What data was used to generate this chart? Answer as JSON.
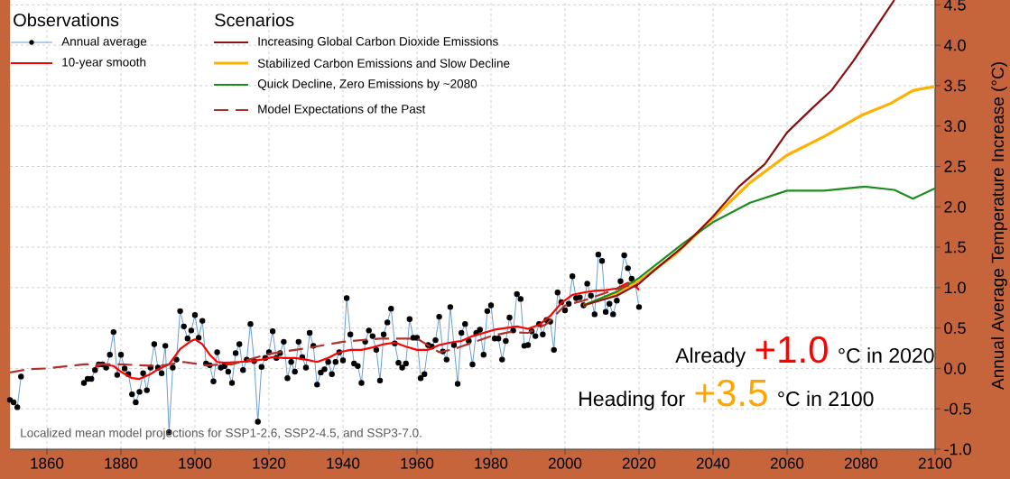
{
  "chart_data": {
    "type": "line",
    "ylabel": "Annual Average Temperature Increase (°C)",
    "xlim": [
      1850,
      2100
    ],
    "ylim": [
      -1.0,
      4.56
    ],
    "xticks": [
      1860,
      1880,
      1900,
      1920,
      1940,
      1960,
      1980,
      2000,
      2020,
      2040,
      2060,
      2080,
      2100
    ],
    "yticks": [
      {
        "value": -1,
        "label": "-1.0"
      },
      -0.5,
      {
        "value": 0,
        "label": "0.0"
      },
      0.5,
      {
        "value": 1,
        "label": "1.0"
      },
      1.5,
      {
        "value": 2,
        "label": "2.0"
      },
      2.5,
      {
        "value": 3,
        "label": "3.0"
      },
      3.5,
      {
        "value": 4,
        "label": "4.0"
      },
      4.5
    ],
    "grid": true,
    "legend": "top left",
    "annotations": [
      "Observations",
      "Scenarios",
      "Localized mean model projections for SSP1-2.6, SSP2-4.5, and SSP3-7.0.",
      "Already",
      "+1.0",
      "°C in 2020",
      "Heading for",
      "+3.5",
      "°C in 2100"
    ],
    "series": [
      {
        "name": "Annual average",
        "color": "#6b9ed2",
        "marker": "circle",
        "x": [
          1850,
          1851,
          1852,
          1853,
          1869,
          1870,
          1871,
          1872,
          1873,
          1874,
          1875,
          1876,
          1877,
          1878,
          1879,
          1880,
          1881,
          1882,
          1883,
          1884,
          1885,
          1886,
          1887,
          1888,
          1889,
          1890,
          1891,
          1892,
          1893,
          1894,
          1895,
          1896,
          1897,
          1898,
          1899,
          1900,
          1901,
          1902,
          1903,
          1904,
          1905,
          1906,
          1907,
          1908,
          1909,
          1910,
          1911,
          1912,
          1913,
          1914,
          1915,
          1916,
          1917,
          1918,
          1919,
          1920,
          1921,
          1922,
          1923,
          1924,
          1925,
          1926,
          1927,
          1928,
          1929,
          1930,
          1931,
          1932,
          1933,
          1934,
          1935,
          1936,
          1937,
          1938,
          1939,
          1940,
          1941,
          1942,
          1943,
          1944,
          1945,
          1946,
          1947,
          1948,
          1949,
          1950,
          1951,
          1952,
          1953,
          1954,
          1955,
          1956,
          1957,
          1958,
          1959,
          1960,
          1961,
          1962,
          1963,
          1964,
          1965,
          1966,
          1967,
          1968,
          1969,
          1970,
          1971,
          1972,
          1973,
          1974,
          1975,
          1976,
          1977,
          1978,
          1979,
          1980,
          1981,
          1982,
          1983,
          1984,
          1985,
          1986,
          1987,
          1988,
          1989,
          1990,
          1991,
          1992,
          1993,
          1994,
          1995,
          1996,
          1997,
          1998,
          1999,
          2000,
          2001,
          2002,
          2003,
          2004,
          2005,
          2006,
          2007,
          2008,
          2009,
          2010,
          2011,
          2012,
          2013,
          2014,
          2015,
          2016,
          2017,
          2018,
          2019,
          2020
        ],
        "values": [
          -0.39,
          -0.42,
          -0.48,
          -0.1,
          null,
          -0.18,
          -0.13,
          -0.13,
          -0.02,
          0.05,
          0.05,
          0.01,
          0.17,
          0.45,
          -0.08,
          0.17,
          0.0,
          -0.07,
          -0.32,
          -0.42,
          -0.29,
          -0.06,
          -0.27,
          0.01,
          0.3,
          0.01,
          -0.06,
          0.28,
          -0.79,
          0.01,
          0.11,
          0.71,
          0.52,
          0.37,
          0.47,
          0.66,
          0.38,
          0.59,
          0.06,
          0.04,
          -0.16,
          0.2,
          0.01,
          0.03,
          -0.04,
          -0.18,
          0.19,
          0.3,
          -0.02,
          0.11,
          0.55,
          0.09,
          -0.66,
          0.02,
          0.13,
          0.2,
          0.46,
          0.13,
          0.19,
          0.33,
          -0.12,
          0.08,
          -0.04,
          0.33,
          0.14,
          0.01,
          0.44,
          0.28,
          -0.2,
          -0.05,
          -0.01,
          0.08,
          -0.07,
          0.08,
          0.2,
          0.1,
          0.87,
          0.42,
          0.06,
          0.03,
          -0.18,
          0.33,
          0.47,
          0.4,
          0.23,
          -0.15,
          0.42,
          0.57,
          0.74,
          0.31,
          0.07,
          0.01,
          0.06,
          0.61,
          0.38,
          0.38,
          -0.12,
          -0.07,
          0.29,
          0.27,
          0.35,
          0.64,
          0.21,
          0.11,
          0.76,
          0.29,
          -0.19,
          0.44,
          0.55,
          0.34,
          0.05,
          0.44,
          0.48,
          0.17,
          0.71,
          0.78,
          0.37,
          0.37,
          0.11,
          0.34,
          0.63,
          0.47,
          0.92,
          0.86,
          0.28,
          0.29,
          0.46,
          0.4,
          0.55,
          0.42,
          0.6,
          0.58,
          0.23,
          0.94,
          0.82,
          0.72,
          0.8,
          1.14,
          0.87,
          0.88,
          0.78,
          1.05,
          0.9,
          0.67,
          1.41,
          1.33,
          0.7,
          0.8,
          0.67,
          0.84,
          1.08,
          1.4,
          1.24,
          1.11,
          1.04,
          0.76
        ]
      },
      {
        "name": "10-year smooth",
        "color": "#ff0000",
        "x": [
          1873,
          1875,
          1878,
          1880,
          1883,
          1885,
          1888,
          1890,
          1893,
          1896,
          1899,
          1900,
          1902,
          1904,
          1906,
          1908,
          1912,
          1915,
          1918,
          1921,
          1924,
          1927,
          1930,
          1933,
          1936,
          1939,
          1942,
          1945,
          1948,
          1951,
          1954,
          1957,
          1960,
          1963,
          1966,
          1969,
          1972,
          1975,
          1978,
          1981,
          1984,
          1987,
          1990,
          1993,
          1996,
          1999,
          2002,
          2005,
          2008,
          2011,
          2014,
          2017,
          2019,
          2020
        ],
        "values": [
          0.02,
          0.05,
          0.03,
          -0.04,
          -0.12,
          -0.13,
          -0.07,
          -0.01,
          0.05,
          0.24,
          0.34,
          0.36,
          0.3,
          0.17,
          0.08,
          0.07,
          0.08,
          0.09,
          0.11,
          0.14,
          0.13,
          0.13,
          0.11,
          0.08,
          0.13,
          0.2,
          0.23,
          0.23,
          0.26,
          0.3,
          0.32,
          0.27,
          0.23,
          0.23,
          0.29,
          0.32,
          0.34,
          0.4,
          0.44,
          0.48,
          0.5,
          0.52,
          0.49,
          0.54,
          0.65,
          0.81,
          0.91,
          0.94,
          0.96,
          0.97,
          0.99,
          1.06,
          1.02,
          0.97
        ]
      },
      {
        "name": "Increasing Global Carbon Dioxide Emissions",
        "color": "#8b1010",
        "x": [
          2005,
          2014,
          2020,
          2024,
          2032,
          2040,
          2047,
          2054,
          2060,
          2067,
          2072,
          2078,
          2083,
          2089
        ],
        "values": [
          0.78,
          0.9,
          1.05,
          1.21,
          1.51,
          1.88,
          2.25,
          2.53,
          2.92,
          3.23,
          3.44,
          3.81,
          4.15,
          4.56
        ]
      },
      {
        "name": "Stabilized Carbon Emissions and Slow Decline",
        "color": "#ffb000",
        "x": [
          2005,
          2014,
          2020,
          2030,
          2040,
          2050,
          2060,
          2070,
          2080,
          2088,
          2094,
          2100
        ],
        "values": [
          0.78,
          0.93,
          1.08,
          1.42,
          1.86,
          2.3,
          2.64,
          2.87,
          3.13,
          3.28,
          3.44,
          3.49
        ]
      },
      {
        "name": "Quick Decline, Zero Emissions by ~2080",
        "color": "#1e8c1e",
        "x": [
          2005,
          2014,
          2020,
          2032,
          2040,
          2050,
          2060,
          2070,
          2081,
          2089,
          2094,
          2100
        ],
        "values": [
          0.78,
          0.95,
          1.12,
          1.55,
          1.81,
          2.05,
          2.2,
          2.2,
          2.25,
          2.21,
          2.1,
          2.23
        ]
      },
      {
        "name": "Model Expectations of the Past",
        "color": "#b0302a",
        "line_style": "dashed",
        "x": [
          1850,
          1855,
          1860,
          1870,
          1880,
          1890,
          1897,
          1903,
          1910,
          1920,
          1930,
          1940,
          1950,
          1960,
          1966,
          1970,
          1975,
          1980,
          1985,
          1990,
          1995,
          2000,
          2005,
          2010,
          2015,
          2019
        ],
        "values": [
          -0.05,
          -0.01,
          0.0,
          0.05,
          0.05,
          0.03,
          0.08,
          0.04,
          0.05,
          0.18,
          0.25,
          0.33,
          0.37,
          0.37,
          0.2,
          0.24,
          0.32,
          0.4,
          0.45,
          0.44,
          0.55,
          0.78,
          0.84,
          0.92,
          1.0,
          1.05
        ]
      }
    ]
  }
}
